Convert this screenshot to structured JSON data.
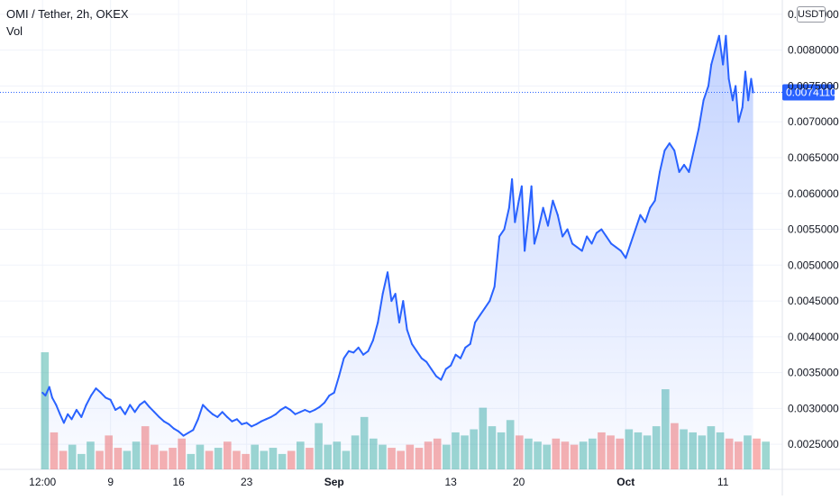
{
  "header": {
    "title": "OMI / Tether, 2h, OKEX",
    "volume_label": "Vol",
    "unit_button": "USDT"
  },
  "colors": {
    "line": "#2962ff",
    "fill_top": "#2962ff",
    "grid": "#f0f3fa",
    "vol_up": "#26a69a",
    "vol_down": "#ef5350",
    "price_label_bg": "#2962ff"
  },
  "chart_data": {
    "type": "area",
    "title": "OMI / Tether, 2h, OKEX",
    "xlabel": "",
    "ylabel": "",
    "x_ticks": [
      "12:00",
      "9",
      "16",
      "23",
      "Sep",
      "13",
      "20",
      "Oct",
      "11"
    ],
    "x_tick_days": [
      0,
      7,
      14,
      21,
      30,
      42,
      49,
      60,
      70
    ],
    "y_ticks": [
      "0.0025000",
      "0.0030000",
      "0.0035000",
      "0.0040000",
      "0.0045000",
      "0.0050000",
      "0.0055000",
      "0.0060000",
      "0.0065000",
      "0.0070000",
      "0.0075000",
      "0.0080000",
      "0.0085000"
    ],
    "ylim": [
      0.00215,
      0.0087
    ],
    "xlim_days": [
      -0.2,
      74.9
    ],
    "last_price": "0.0074110",
    "last_price_value": 0.007411,
    "grid": true,
    "series": [
      {
        "points": [
          [
            0,
            0.00322
          ],
          [
            0.3,
            0.00318
          ],
          [
            0.7,
            0.0033
          ],
          [
            1,
            0.00315
          ],
          [
            1.4,
            0.00305
          ],
          [
            1.8,
            0.00292
          ],
          [
            2.2,
            0.0028
          ],
          [
            2.6,
            0.00292
          ],
          [
            3,
            0.00285
          ],
          [
            3.5,
            0.00298
          ],
          [
            4,
            0.00288
          ],
          [
            4.5,
            0.00305
          ],
          [
            5,
            0.00318
          ],
          [
            5.5,
            0.00328
          ],
          [
            6,
            0.00322
          ],
          [
            6.5,
            0.00315
          ],
          [
            7,
            0.00312
          ],
          [
            7.5,
            0.00298
          ],
          [
            8,
            0.00302
          ],
          [
            8.5,
            0.00292
          ],
          [
            9,
            0.00305
          ],
          [
            9.5,
            0.00295
          ],
          [
            10,
            0.00305
          ],
          [
            10.5,
            0.0031
          ],
          [
            11,
            0.00302
          ],
          [
            11.5,
            0.00295
          ],
          [
            12,
            0.00288
          ],
          [
            12.5,
            0.00282
          ],
          [
            13,
            0.00278
          ],
          [
            13.5,
            0.00272
          ],
          [
            14,
            0.00268
          ],
          [
            14.5,
            0.00262
          ],
          [
            15,
            0.00266
          ],
          [
            15.5,
            0.0027
          ],
          [
            16,
            0.00285
          ],
          [
            16.5,
            0.00305
          ],
          [
            17,
            0.00298
          ],
          [
            17.5,
            0.00292
          ],
          [
            18,
            0.00288
          ],
          [
            18.5,
            0.00295
          ],
          [
            19,
            0.00288
          ],
          [
            19.5,
            0.00282
          ],
          [
            20,
            0.00285
          ],
          [
            20.5,
            0.00278
          ],
          [
            21,
            0.0028
          ],
          [
            21.5,
            0.00275
          ],
          [
            22,
            0.00278
          ],
          [
            22.5,
            0.00282
          ],
          [
            23,
            0.00285
          ],
          [
            23.5,
            0.00288
          ],
          [
            24,
            0.00292
          ],
          [
            24.5,
            0.00298
          ],
          [
            25,
            0.00302
          ],
          [
            25.5,
            0.00298
          ],
          [
            26,
            0.00292
          ],
          [
            26.5,
            0.00295
          ],
          [
            27,
            0.00298
          ],
          [
            27.5,
            0.00295
          ],
          [
            28,
            0.00298
          ],
          [
            28.5,
            0.00302
          ],
          [
            29,
            0.00308
          ],
          [
            29.5,
            0.00318
          ],
          [
            30,
            0.00322
          ],
          [
            30.5,
            0.00345
          ],
          [
            31,
            0.0037
          ],
          [
            31.5,
            0.0038
          ],
          [
            32,
            0.00378
          ],
          [
            32.5,
            0.00385
          ],
          [
            33,
            0.00375
          ],
          [
            33.5,
            0.0038
          ],
          [
            34,
            0.00395
          ],
          [
            34.5,
            0.0042
          ],
          [
            35,
            0.0046
          ],
          [
            35.5,
            0.0049
          ],
          [
            35.9,
            0.0045
          ],
          [
            36.3,
            0.0046
          ],
          [
            36.7,
            0.0042
          ],
          [
            37.1,
            0.0045
          ],
          [
            37.5,
            0.0041
          ],
          [
            38,
            0.0039
          ],
          [
            38.5,
            0.0038
          ],
          [
            39,
            0.0037
          ],
          [
            39.5,
            0.00365
          ],
          [
            40,
            0.00355
          ],
          [
            40.5,
            0.00345
          ],
          [
            41,
            0.0034
          ],
          [
            41.5,
            0.00355
          ],
          [
            42,
            0.0036
          ],
          [
            42.5,
            0.00375
          ],
          [
            43,
            0.0037
          ],
          [
            43.5,
            0.00385
          ],
          [
            44,
            0.0039
          ],
          [
            44.5,
            0.0042
          ],
          [
            45,
            0.0043
          ],
          [
            45.5,
            0.0044
          ],
          [
            46,
            0.0045
          ],
          [
            46.5,
            0.0047
          ],
          [
            47,
            0.0054
          ],
          [
            47.5,
            0.0055
          ],
          [
            48,
            0.0058
          ],
          [
            48.3,
            0.0062
          ],
          [
            48.6,
            0.0056
          ],
          [
            49,
            0.0059
          ],
          [
            49.3,
            0.0061
          ],
          [
            49.6,
            0.0052
          ],
          [
            50,
            0.0057
          ],
          [
            50.3,
            0.0061
          ],
          [
            50.6,
            0.0053
          ],
          [
            51,
            0.0055
          ],
          [
            51.5,
            0.0058
          ],
          [
            52,
            0.00555
          ],
          [
            52.5,
            0.0059
          ],
          [
            53,
            0.0057
          ],
          [
            53.5,
            0.0054
          ],
          [
            54,
            0.0055
          ],
          [
            54.5,
            0.0053
          ],
          [
            55,
            0.00525
          ],
          [
            55.5,
            0.0052
          ],
          [
            56,
            0.0054
          ],
          [
            56.5,
            0.0053
          ],
          [
            57,
            0.00545
          ],
          [
            57.5,
            0.0055
          ],
          [
            58,
            0.0054
          ],
          [
            58.5,
            0.0053
          ],
          [
            59,
            0.00525
          ],
          [
            59.5,
            0.0052
          ],
          [
            60,
            0.0051
          ],
          [
            60.5,
            0.0053
          ],
          [
            61,
            0.0055
          ],
          [
            61.5,
            0.0057
          ],
          [
            62,
            0.0056
          ],
          [
            62.5,
            0.0058
          ],
          [
            63,
            0.0059
          ],
          [
            63.5,
            0.0063
          ],
          [
            64,
            0.0066
          ],
          [
            64.5,
            0.0067
          ],
          [
            65,
            0.0066
          ],
          [
            65.5,
            0.0063
          ],
          [
            66,
            0.0064
          ],
          [
            66.5,
            0.0063
          ],
          [
            67,
            0.0066
          ],
          [
            67.5,
            0.0069
          ],
          [
            68,
            0.0073
          ],
          [
            68.5,
            0.0075
          ],
          [
            68.8,
            0.0078
          ],
          [
            69.2,
            0.008
          ],
          [
            69.6,
            0.0082
          ],
          [
            70,
            0.0078
          ],
          [
            70.3,
            0.0082
          ],
          [
            70.6,
            0.0076
          ],
          [
            71,
            0.0073
          ],
          [
            71.3,
            0.0075
          ],
          [
            71.6,
            0.007
          ],
          [
            72,
            0.0072
          ],
          [
            72.3,
            0.0077
          ],
          [
            72.6,
            0.0073
          ],
          [
            72.9,
            0.0076
          ],
          [
            73.1,
            0.00741
          ]
        ]
      }
    ],
    "volume": [
      3.8,
      1.2,
      0.6,
      0.8,
      0.5,
      0.9,
      0.6,
      1.1,
      0.7,
      0.6,
      0.9,
      1.4,
      0.8,
      0.6,
      0.7,
      1.0,
      0.5,
      0.8,
      0.6,
      0.7,
      0.9,
      0.6,
      0.5,
      0.8,
      0.6,
      0.7,
      0.5,
      0.6,
      0.9,
      0.7,
      1.5,
      0.8,
      0.9,
      0.6,
      1.1,
      1.7,
      1.0,
      0.8,
      0.7,
      0.6,
      0.8,
      0.7,
      0.9,
      1.0,
      0.8,
      1.2,
      1.1,
      1.3,
      2.0,
      1.4,
      1.2,
      1.6,
      1.1,
      1.0,
      0.9,
      0.8,
      1.0,
      0.9,
      0.8,
      0.9,
      1.0,
      1.2,
      1.1,
      1.0,
      1.3,
      1.2,
      1.1,
      1.4,
      2.6,
      1.5,
      1.3,
      1.2,
      1.1,
      1.4,
      1.2,
      1.0,
      0.9,
      1.1,
      1.0,
      0.9
    ]
  }
}
